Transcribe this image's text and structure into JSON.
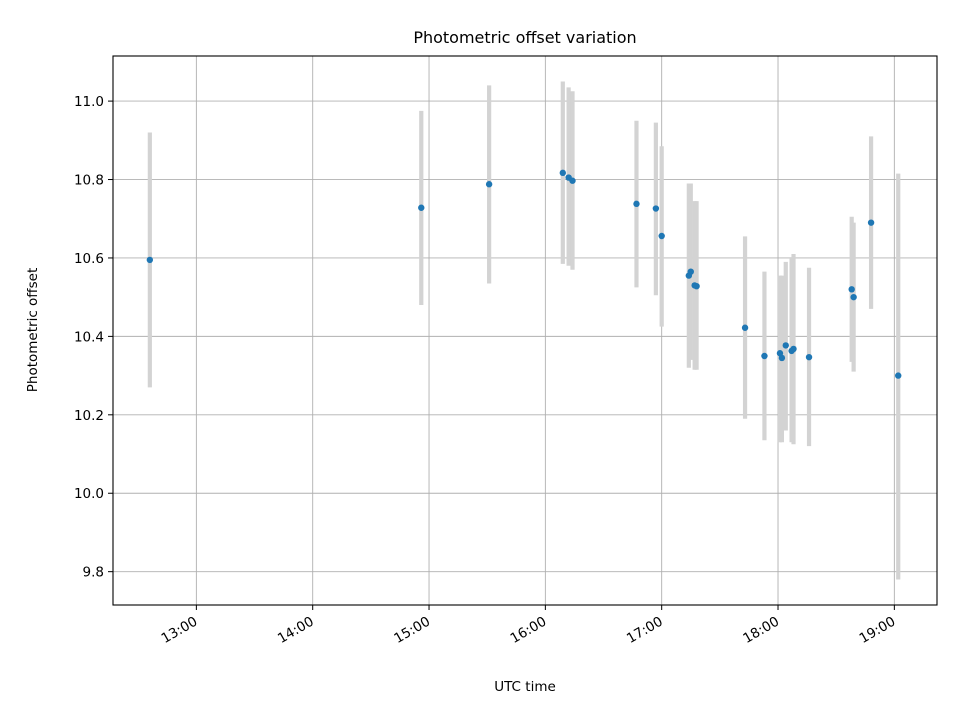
{
  "chart_data": {
    "type": "scatter",
    "title": "Photometric offset variation",
    "xlabel": "UTC time",
    "ylabel": "Photometric offset",
    "x_ticks": [
      "13:00",
      "14:00",
      "15:00",
      "16:00",
      "17:00",
      "18:00",
      "19:00"
    ],
    "y_ticks": [
      9.8,
      10.0,
      10.2,
      10.4,
      10.6,
      10.8,
      11.0
    ],
    "xlim": [
      "12:17",
      "19:22"
    ],
    "ylim": [
      9.715,
      11.115
    ],
    "grid": true,
    "point_color": "#1f77b4",
    "errorbar_color": "#d3d3d3",
    "points": [
      {
        "x": "12:36",
        "y": 10.595,
        "lo": 10.27,
        "hi": 10.92
      },
      {
        "x": "14:56",
        "y": 10.728,
        "lo": 10.48,
        "hi": 10.975
      },
      {
        "x": "15:31",
        "y": 10.788,
        "lo": 10.535,
        "hi": 11.04
      },
      {
        "x": "16:09",
        "y": 10.817,
        "lo": 10.585,
        "hi": 11.05
      },
      {
        "x": "16:12",
        "y": 10.805,
        "lo": 10.58,
        "hi": 11.035
      },
      {
        "x": "16:14",
        "y": 10.797,
        "lo": 10.57,
        "hi": 11.025
      },
      {
        "x": "16:47",
        "y": 10.738,
        "lo": 10.525,
        "hi": 10.95
      },
      {
        "x": "16:57",
        "y": 10.726,
        "lo": 10.505,
        "hi": 10.945
      },
      {
        "x": "17:00",
        "y": 10.656,
        "lo": 10.425,
        "hi": 10.885
      },
      {
        "x": "17:14",
        "y": 10.555,
        "lo": 10.32,
        "hi": 10.79
      },
      {
        "x": "17:15",
        "y": 10.565,
        "lo": 10.34,
        "hi": 10.79
      },
      {
        "x": "17:17",
        "y": 10.53,
        "lo": 10.315,
        "hi": 10.745
      },
      {
        "x": "17:18",
        "y": 10.528,
        "lo": 10.315,
        "hi": 10.745
      },
      {
        "x": "17:43",
        "y": 10.422,
        "lo": 10.19,
        "hi": 10.655
      },
      {
        "x": "17:53",
        "y": 10.35,
        "lo": 10.135,
        "hi": 10.565
      },
      {
        "x": "18:01",
        "y": 10.357,
        "lo": 10.13,
        "hi": 10.555
      },
      {
        "x": "18:02",
        "y": 10.345,
        "lo": 10.13,
        "hi": 10.555
      },
      {
        "x": "18:04",
        "y": 10.377,
        "lo": 10.16,
        "hi": 10.59
      },
      {
        "x": "18:07",
        "y": 10.363,
        "lo": 10.13,
        "hi": 10.6
      },
      {
        "x": "18:08",
        "y": 10.368,
        "lo": 10.125,
        "hi": 10.61
      },
      {
        "x": "18:16",
        "y": 10.347,
        "lo": 10.12,
        "hi": 10.575
      },
      {
        "x": "18:38",
        "y": 10.52,
        "lo": 10.335,
        "hi": 10.705
      },
      {
        "x": "18:39",
        "y": 10.5,
        "lo": 10.31,
        "hi": 10.69
      },
      {
        "x": "18:48",
        "y": 10.69,
        "lo": 10.47,
        "hi": 10.91
      },
      {
        "x": "19:02",
        "y": 10.3,
        "lo": 9.78,
        "hi": 10.815
      }
    ]
  }
}
